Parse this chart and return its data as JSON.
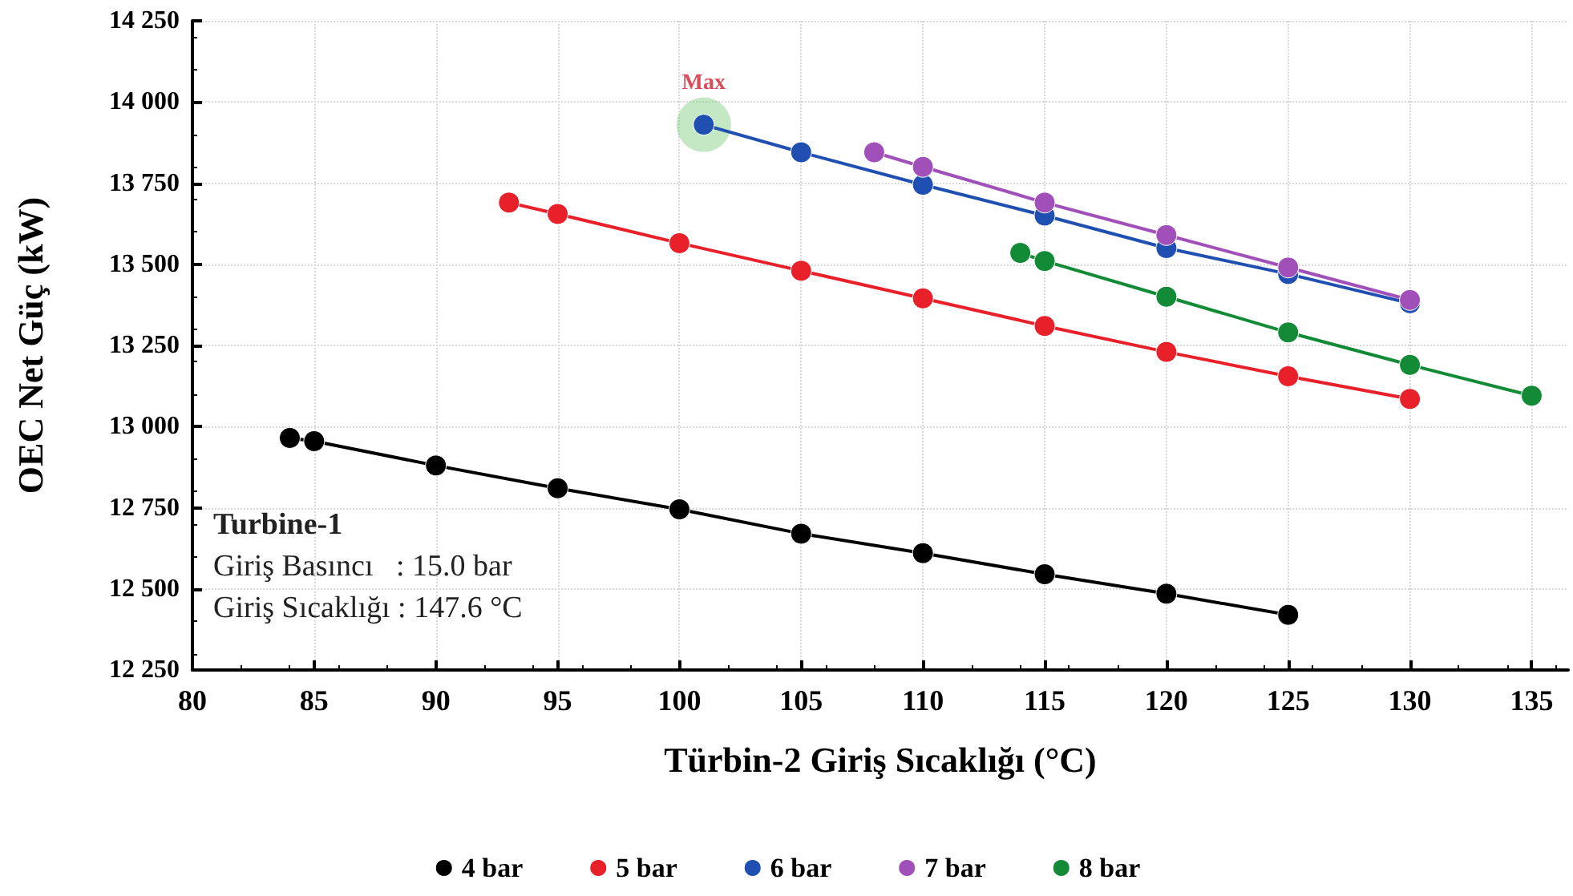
{
  "chart_data": {
    "type": "line",
    "xlabel": "Türbin-2 Giriş Sıcaklığı (°C)",
    "ylabel": "OEC Net Güç (kW)",
    "xlim": [
      80,
      136.5
    ],
    "xticks": [
      80,
      85,
      90,
      95,
      100,
      105,
      110,
      115,
      120,
      125,
      130,
      135
    ],
    "ylim": [
      12250,
      14250
    ],
    "yticks": [
      {
        "value": 12250,
        "label": "12 250"
      },
      {
        "value": 12500,
        "label": "12 500"
      },
      {
        "value": 12750,
        "label": "12 750"
      },
      {
        "value": 13000,
        "label": "13 000"
      },
      {
        "value": 13250,
        "label": "13 250"
      },
      {
        "value": 13500,
        "label": "13 500"
      },
      {
        "value": 13750,
        "label": "13 750"
      },
      {
        "value": 14000,
        "label": "14 000"
      },
      {
        "value": 14250,
        "label": "14 250"
      }
    ],
    "grid": true,
    "legend": "bottom",
    "marker": "circle",
    "line_style": "solid",
    "series": [
      {
        "name": "4 bar",
        "color": "#000000",
        "x": [
          84,
          85,
          90,
          95,
          100,
          105,
          110,
          115,
          120,
          125
        ],
        "values": [
          12965,
          12955,
          12880,
          12810,
          12745,
          12670,
          12610,
          12545,
          12485,
          12420
        ]
      },
      {
        "name": "5 bar",
        "color": "#e8202a",
        "x": [
          93,
          95,
          100,
          105,
          110,
          115,
          120,
          125,
          130
        ],
        "values": [
          13690,
          13655,
          13565,
          13480,
          13395,
          13310,
          13230,
          13155,
          13085
        ]
      },
      {
        "name": "6 bar",
        "color": "#1f4fb0",
        "x": [
          101,
          105,
          110,
          115,
          120,
          125,
          130
        ],
        "values": [
          13930,
          13845,
          13745,
          13650,
          13550,
          13470,
          13380
        ]
      },
      {
        "name": "7 bar",
        "color": "#a050b8",
        "x": [
          108,
          110,
          115,
          120,
          125,
          130
        ],
        "values": [
          13845,
          13800,
          13690,
          13590,
          13490,
          13390
        ]
      },
      {
        "name": "8 bar",
        "color": "#138a36",
        "x": [
          114,
          115,
          120,
          125,
          130,
          135
        ],
        "values": [
          13535,
          13510,
          13400,
          13290,
          13190,
          13095
        ]
      }
    ],
    "annotations": [
      {
        "text": "Max",
        "x": 101,
        "y": 13930
      },
      "Turbine-1",
      "Giriş Basıncı   : 15.0 bar",
      "Giriş Sıcaklığı : 147.6 °C"
    ]
  }
}
